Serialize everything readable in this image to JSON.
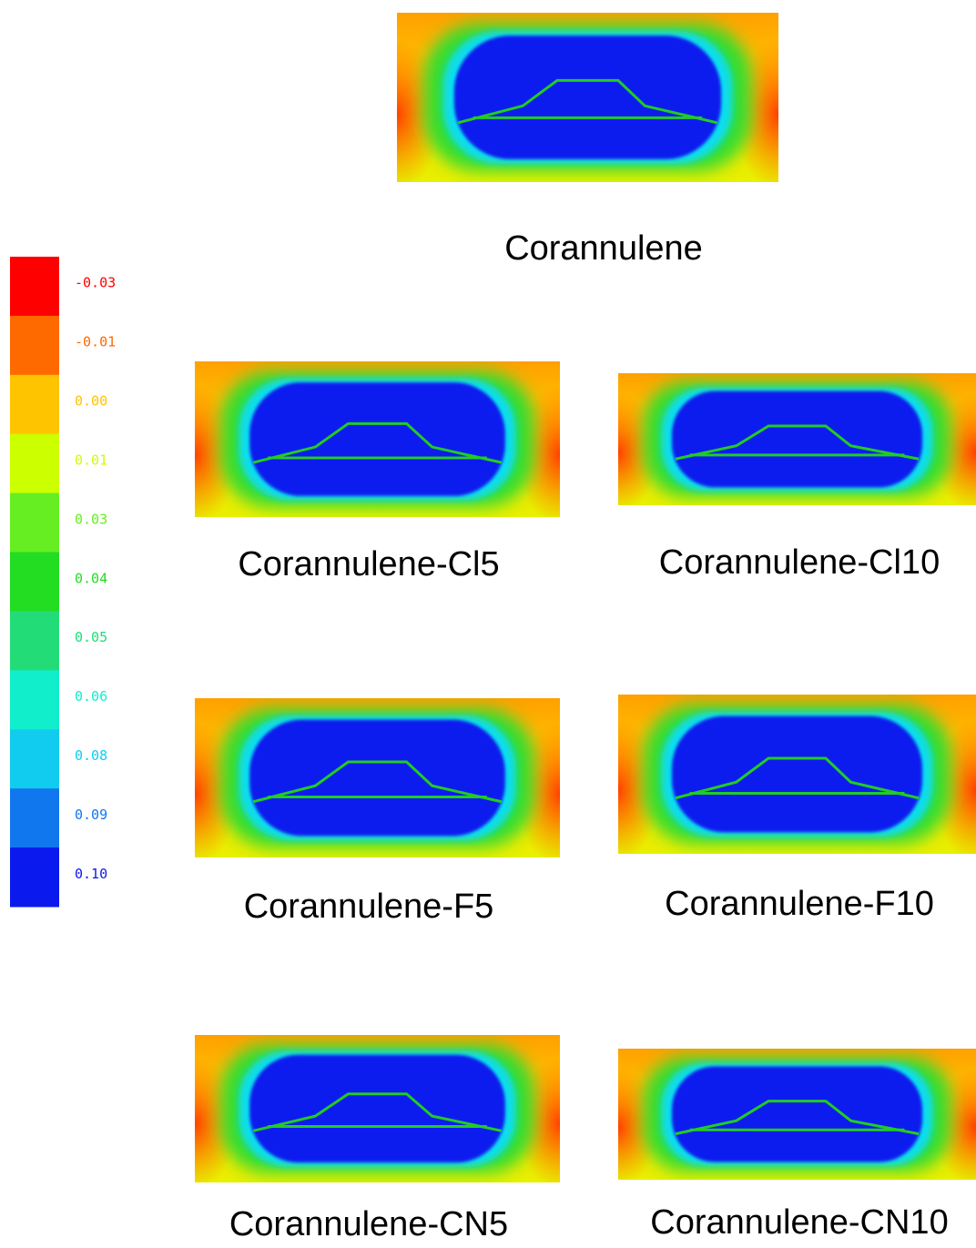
{
  "colorbar": {
    "labels": [
      "-0.03",
      "-0.01",
      "0.00",
      "0.01",
      "0.03",
      "0.04",
      "0.05",
      "0.06",
      "0.08",
      "0.09",
      "0.10"
    ],
    "colors": [
      "#ff0000",
      "#ff6a00",
      "#ffc400",
      "#ccff00",
      "#66ee22",
      "#22dd22",
      "#22dd77",
      "#11eecc",
      "#11ccee",
      "#1177ee",
      "#0a1aee"
    ]
  },
  "panels": [
    {
      "label": "Corannulene"
    },
    {
      "label": "Corannulene-Cl5"
    },
    {
      "label": "Corannulene-Cl10"
    },
    {
      "label": "Corannulene-F5"
    },
    {
      "label": "Corannulene-F10"
    },
    {
      "label": "Corannulene-CN5"
    },
    {
      "label": "Corannulene-CN10"
    }
  ]
}
